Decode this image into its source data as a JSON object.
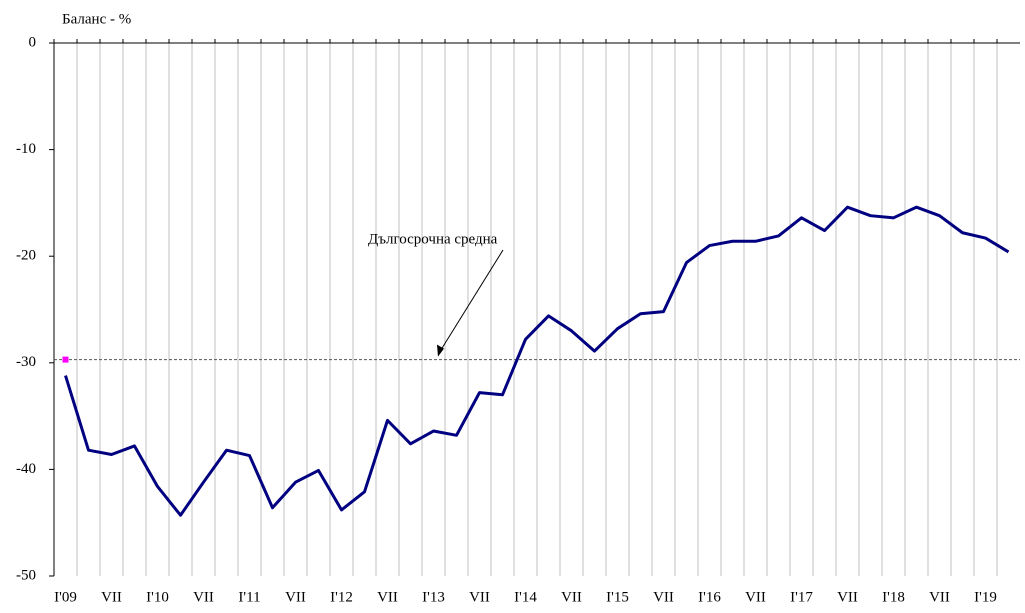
{
  "chart_data": {
    "type": "line",
    "y_axis_label": "Баланс - %",
    "categories": [
      "I'09",
      null,
      "VII",
      null,
      "I'10",
      null,
      "VII",
      null,
      "I'11",
      null,
      "VII",
      null,
      "I'12",
      null,
      "VII",
      null,
      "I'13",
      null,
      "VII",
      null,
      "I'14",
      null,
      "VII",
      null,
      "I'15",
      null,
      "VII",
      null,
      "I'16",
      null,
      "VII",
      null,
      "I'17",
      null,
      "VII",
      null,
      "I'18",
      null,
      "VII",
      null,
      "I'19",
      null
    ],
    "series": [
      {
        "color": "#000080",
        "values": [
          -31.2,
          -38.2,
          -38.6,
          -37.8,
          -41.6,
          -44.3,
          -41.2,
          -38.2,
          -38.7,
          -43.6,
          -41.2,
          -40.1,
          -43.8,
          -42.1,
          -35.4,
          -37.6,
          -36.4,
          -36.8,
          -32.8,
          -33.0,
          -27.8,
          -25.6,
          -27.0,
          -28.9,
          -26.8,
          -25.4,
          -25.2,
          -20.6,
          -19.0,
          -18.6,
          -18.6,
          -18.1,
          -16.4,
          -17.6,
          -15.4,
          -16.2,
          -16.4,
          -15.4,
          -16.2,
          -17.8,
          -18.3,
          -19.6
        ]
      }
    ],
    "reference_line": {
      "value": -29.7,
      "label": "Дългосрочна средна",
      "color": "#555555",
      "marker_color": "#ff00ff"
    },
    "ylim": [
      -50,
      0
    ],
    "yticks": [
      0,
      -10,
      -20,
      -30,
      -40,
      -50
    ],
    "grid": true
  }
}
